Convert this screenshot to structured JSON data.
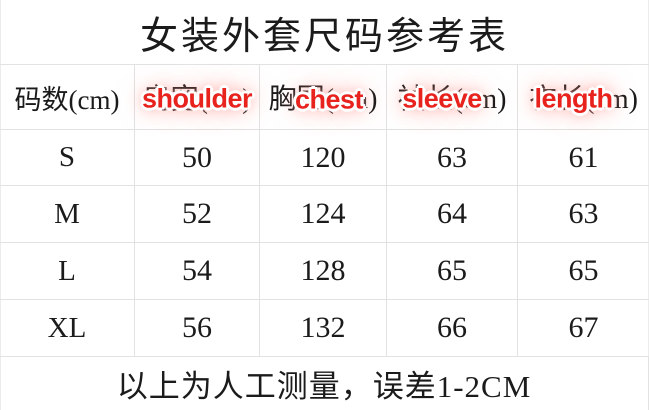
{
  "title": "女装外套尺码参考表",
  "table": {
    "col0_header": "码数(cm)",
    "columns": [
      {
        "cn": "肩宽(cm)",
        "en": "shoulder"
      },
      {
        "cn": "胸围(cm)",
        "en": "chest"
      },
      {
        "cn": "袖长(cm)",
        "en": "sleeve"
      },
      {
        "cn": "衣长(cm)",
        "en": "length"
      }
    ],
    "rows": [
      {
        "size": "S",
        "values": [
          "50",
          "120",
          "63",
          "61"
        ]
      },
      {
        "size": "M",
        "values": [
          "52",
          "124",
          "64",
          "63"
        ]
      },
      {
        "size": "L",
        "values": [
          "54",
          "128",
          "65",
          "65"
        ]
      },
      {
        "size": "XL",
        "values": [
          "56",
          "132",
          "66",
          "67"
        ]
      }
    ]
  },
  "footer_note": "以上为人工测量，误差1-2CM",
  "colors": {
    "accent_red": "#e8221d",
    "grid_line": "#e2e2e2",
    "text": "#1b1b1b"
  },
  "chart_data": {
    "type": "table",
    "title": "女装外套尺码参考表",
    "headers": [
      "码数(cm)",
      "肩宽(cm) / shoulder",
      "胸围(cm) / chest",
      "袖长(cm) / sleeve",
      "衣长(cm) / length"
    ],
    "rows": [
      [
        "S",
        50,
        120,
        63,
        61
      ],
      [
        "M",
        52,
        124,
        64,
        63
      ],
      [
        "L",
        54,
        128,
        65,
        65
      ],
      [
        "XL",
        56,
        132,
        66,
        67
      ]
    ],
    "footnote": "以上为人工测量，误差1-2CM"
  }
}
